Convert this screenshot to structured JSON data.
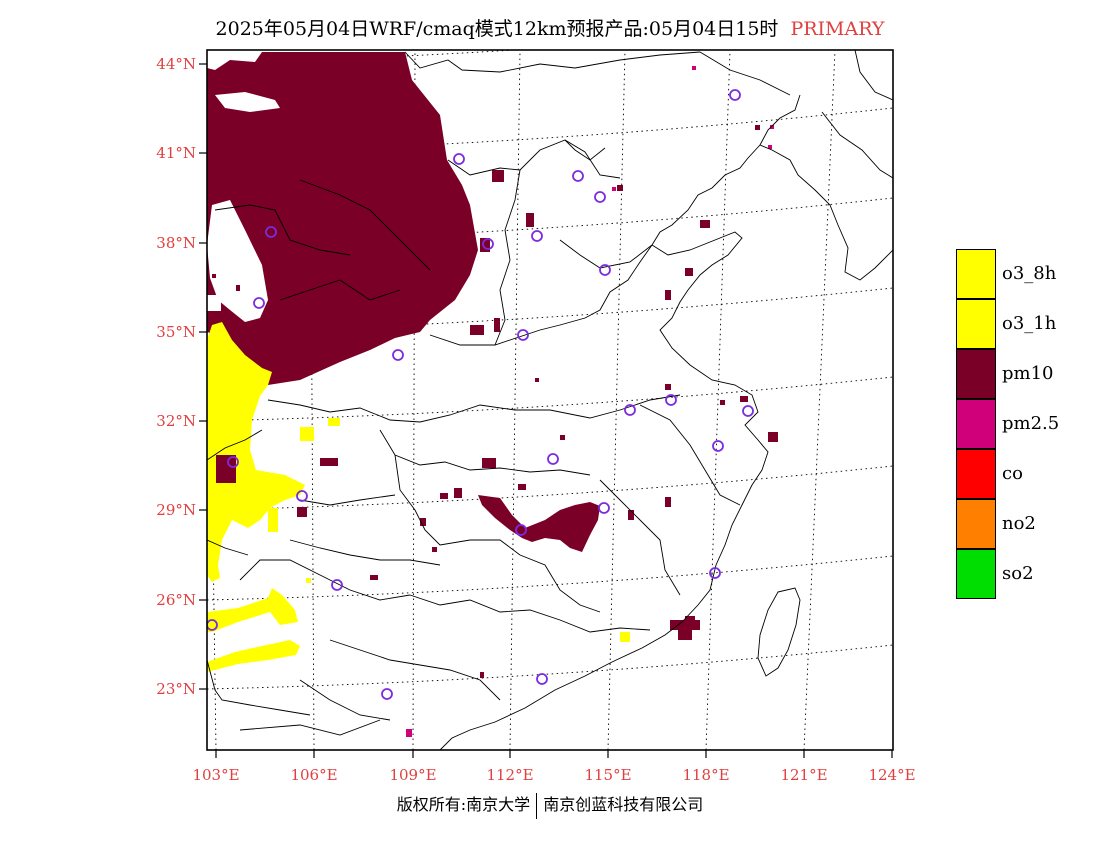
{
  "title": {
    "main": "2025年05月04日WRF/cmaq模式12km预报产品:05月04日15时",
    "tag": "PRIMARY"
  },
  "axes": {
    "lat_labels": [
      "44°N",
      "41°N",
      "38°N",
      "35°N",
      "32°N",
      "29°N",
      "26°N",
      "23°N"
    ],
    "lon_labels": [
      "103°E",
      "106°E",
      "109°E",
      "112°E",
      "115°E",
      "118°E",
      "121°E",
      "124°E"
    ]
  },
  "legend": {
    "items": [
      {
        "label": "o3_8h",
        "color": "#ffff00"
      },
      {
        "label": "o3_1h",
        "color": "#ffff00"
      },
      {
        "label": "pm10",
        "color": "#7a0028"
      },
      {
        "label": "pm2.5",
        "color": "#d0007a"
      },
      {
        "label": "co",
        "color": "#ff0000"
      },
      {
        "label": "no2",
        "color": "#ff8000"
      },
      {
        "label": "so2",
        "color": "#00dd00"
      }
    ]
  },
  "footer": {
    "left": "版权所有:南京大学",
    "right": "南京创蓝科技有限公司"
  },
  "colors": {
    "pm10": "#7a0028",
    "pm25": "#d0007a",
    "o3": "#ffff00",
    "station": "#7b2ce0",
    "label_red": "#e04040"
  }
}
